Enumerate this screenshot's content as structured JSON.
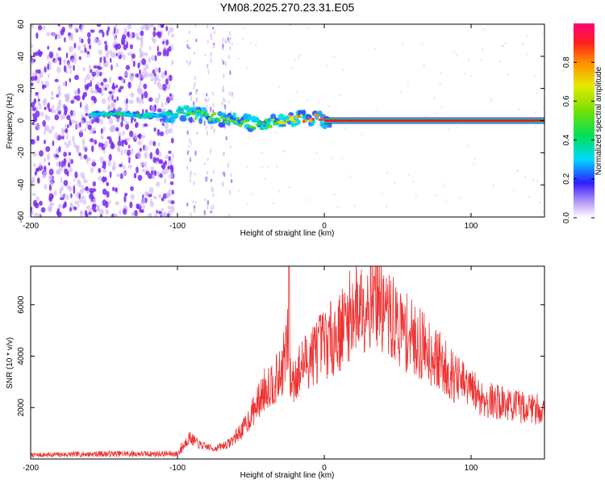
{
  "title": "YM08.2025.270.23.31.E05",
  "colors": {
    "snr_line": "#ee3333",
    "ridge": "#ee1a1a",
    "noise": "#7a2cf0",
    "noise_light": "#cdb4f5"
  },
  "chart_data": [
    {
      "type": "heatmap",
      "name": "spectrogram",
      "title": "YM08.2025.270.23.31.E05",
      "xlabel": "Height of straight line (km)",
      "ylabel": "Frequency (Hz)",
      "xlim": [
        -200,
        150
      ],
      "ylim": [
        -60,
        60
      ],
      "x_ticks": [
        -200,
        -100,
        0,
        100
      ],
      "x_tick_labels": [
        "-200",
        "-100",
        "0",
        "100"
      ],
      "y_ticks": [
        -60,
        -40,
        -20,
        0,
        20,
        40,
        60
      ],
      "y_tick_labels": [
        "-60",
        "-40",
        "-20",
        "0",
        "20",
        "40",
        "60"
      ],
      "colorbar": {
        "label": "Normalized spectral amplitude",
        "range": [
          0,
          1
        ],
        "ticks": [
          0.0,
          0.2,
          0.4,
          0.6,
          0.8
        ],
        "tick_labels": [
          "0.0",
          "0.2",
          "0.4",
          "0.6",
          "0.8"
        ]
      },
      "noise_region_km": [
        -200,
        -103
      ],
      "ridge": {
        "x": [
          -158,
          -140,
          -120,
          -110,
          -100,
          -90,
          -80,
          -70,
          -60,
          -50,
          -45,
          -40,
          -30,
          -20,
          -10,
          -5,
          0,
          10,
          50,
          100,
          150
        ],
        "frequency_hz": [
          4,
          4,
          3,
          3,
          5,
          4,
          3,
          1,
          0,
          -2,
          -3,
          -2,
          0,
          1,
          2,
          2,
          0,
          0,
          0,
          0,
          0
        ],
        "amplitude": [
          0.35,
          0.4,
          0.3,
          0.3,
          0.4,
          0.45,
          0.5,
          0.5,
          0.55,
          0.5,
          0.45,
          0.5,
          0.6,
          0.7,
          0.8,
          0.85,
          0.95,
          1.0,
          1.0,
          1.0,
          1.0
        ]
      }
    },
    {
      "type": "line",
      "name": "snr",
      "xlabel": "Height of straight line (km)",
      "ylabel": "SNR (10 * v/v)",
      "xlim": [
        -200,
        150
      ],
      "ylim": [
        0,
        7500
      ],
      "x_ticks": [
        -200,
        -100,
        0,
        100
      ],
      "x_tick_labels": [
        "-200",
        "-100",
        "0",
        "100"
      ],
      "y_ticks": [
        2000,
        4000,
        6000
      ],
      "y_tick_labels": [
        "2000",
        "4000",
        "6000"
      ],
      "series": [
        {
          "name": "SNR",
          "x": [
            -200,
            -150,
            -100,
            -92,
            -85,
            -75,
            -65,
            -55,
            -45,
            -40,
            -30,
            -25,
            -23,
            -20,
            -10,
            0,
            10,
            20,
            30,
            35,
            40,
            50,
            60,
            70,
            80,
            90,
            100,
            110,
            120,
            130,
            140,
            150
          ],
          "y": [
            150,
            200,
            200,
            850,
            550,
            400,
            600,
            1200,
            2200,
            2800,
            3200,
            4500,
            3000,
            3200,
            4000,
            4500,
            4900,
            5800,
            6200,
            6500,
            5800,
            5200,
            4700,
            4300,
            3700,
            3100,
            2700,
            2300,
            2200,
            2050,
            2000,
            1900
          ]
        }
      ],
      "spikes": [
        {
          "x": -24,
          "y": 7500
        },
        {
          "x": 34,
          "y": 7100
        }
      ]
    }
  ]
}
